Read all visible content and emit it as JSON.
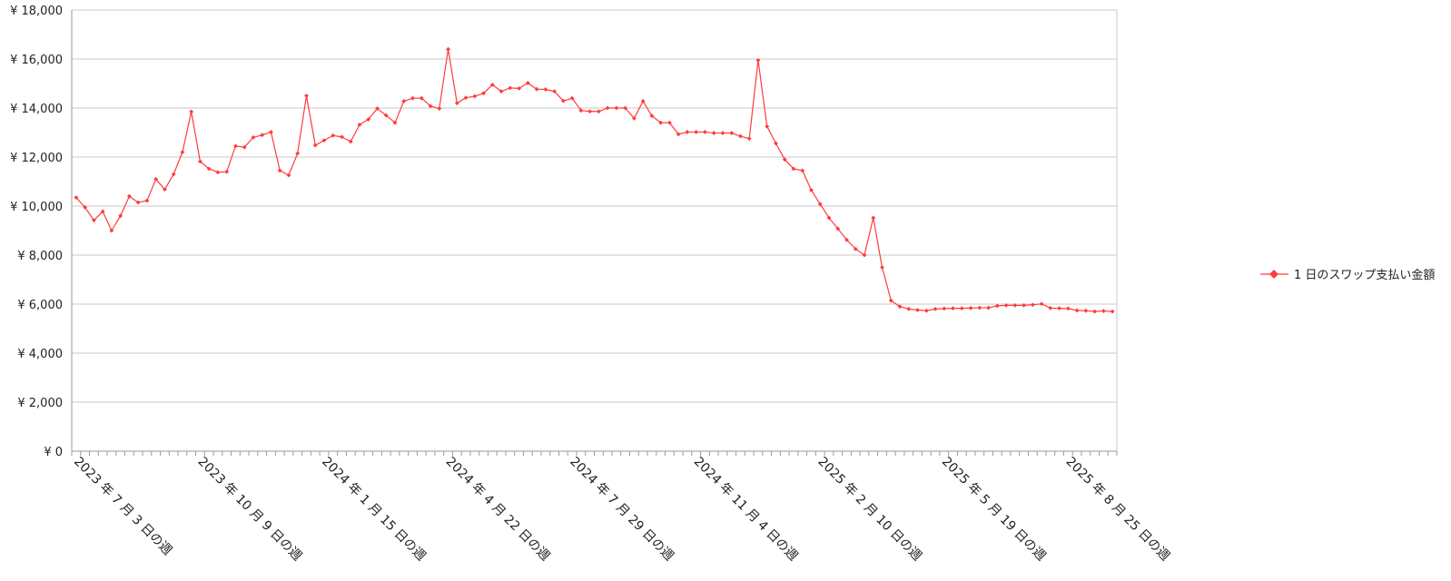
{
  "chart_data": {
    "type": "line",
    "title": "",
    "xlabel": "",
    "ylabel": "",
    "ylim": [
      0,
      18000
    ],
    "y_ticks": [
      "¥ 0",
      "¥ 2,000",
      "¥ 4,000",
      "¥ 6,000",
      "¥ 8,000",
      "¥ 10,000",
      "¥ 12,000",
      "¥ 14,000",
      "¥ 16,000",
      "¥ 18,000"
    ],
    "x_tick_labels": [
      "2023 年 7 月 3 日の週",
      "2023 年 10 月 9 日の週",
      "2024 年 1 月 15 日の週",
      "2024 年 4 月 22 日の週",
      "2024 年 7 月 29 日の週",
      "2024 年 11 月 4 日の週",
      "2025 年 2 月 10 日の週",
      "2025 年 5 月 19 日の週",
      "2025 年 8 月 25 日の週"
    ],
    "x_tick_every": 14,
    "legend_position": "right",
    "grid": true,
    "series": [
      {
        "name": "1 日のスワップ支払い金額",
        "color": "#ff3b3b",
        "values": [
          10350,
          9950,
          9420,
          9780,
          9000,
          9600,
          10400,
          10150,
          10220,
          11100,
          10680,
          11300,
          12200,
          13850,
          11820,
          11520,
          11380,
          11400,
          12450,
          12400,
          12800,
          12900,
          13020,
          11450,
          11260,
          12150,
          14500,
          12480,
          12680,
          12880,
          12820,
          12630,
          13320,
          13540,
          13980,
          13700,
          13400,
          14280,
          14400,
          14400,
          14080,
          13980,
          16400,
          14200,
          14420,
          14480,
          14600,
          14950,
          14680,
          14820,
          14800,
          15020,
          14770,
          14760,
          14680,
          14290,
          14400,
          13900,
          13860,
          13860,
          14000,
          14000,
          14000,
          13580,
          14280,
          13680,
          13400,
          13400,
          12930,
          13020,
          13020,
          13020,
          12980,
          12980,
          12980,
          12850,
          12750,
          15950,
          13250,
          12560,
          11900,
          11520,
          11450,
          10650,
          10080,
          9520,
          9080,
          8620,
          8250,
          8000,
          9520,
          7500,
          6150,
          5900,
          5800,
          5760,
          5730,
          5800,
          5820,
          5830,
          5830,
          5840,
          5850,
          5850,
          5930,
          5950,
          5950,
          5950,
          5970,
          6010,
          5840,
          5830,
          5820,
          5740,
          5730,
          5700,
          5720,
          5700
        ]
      }
    ]
  }
}
